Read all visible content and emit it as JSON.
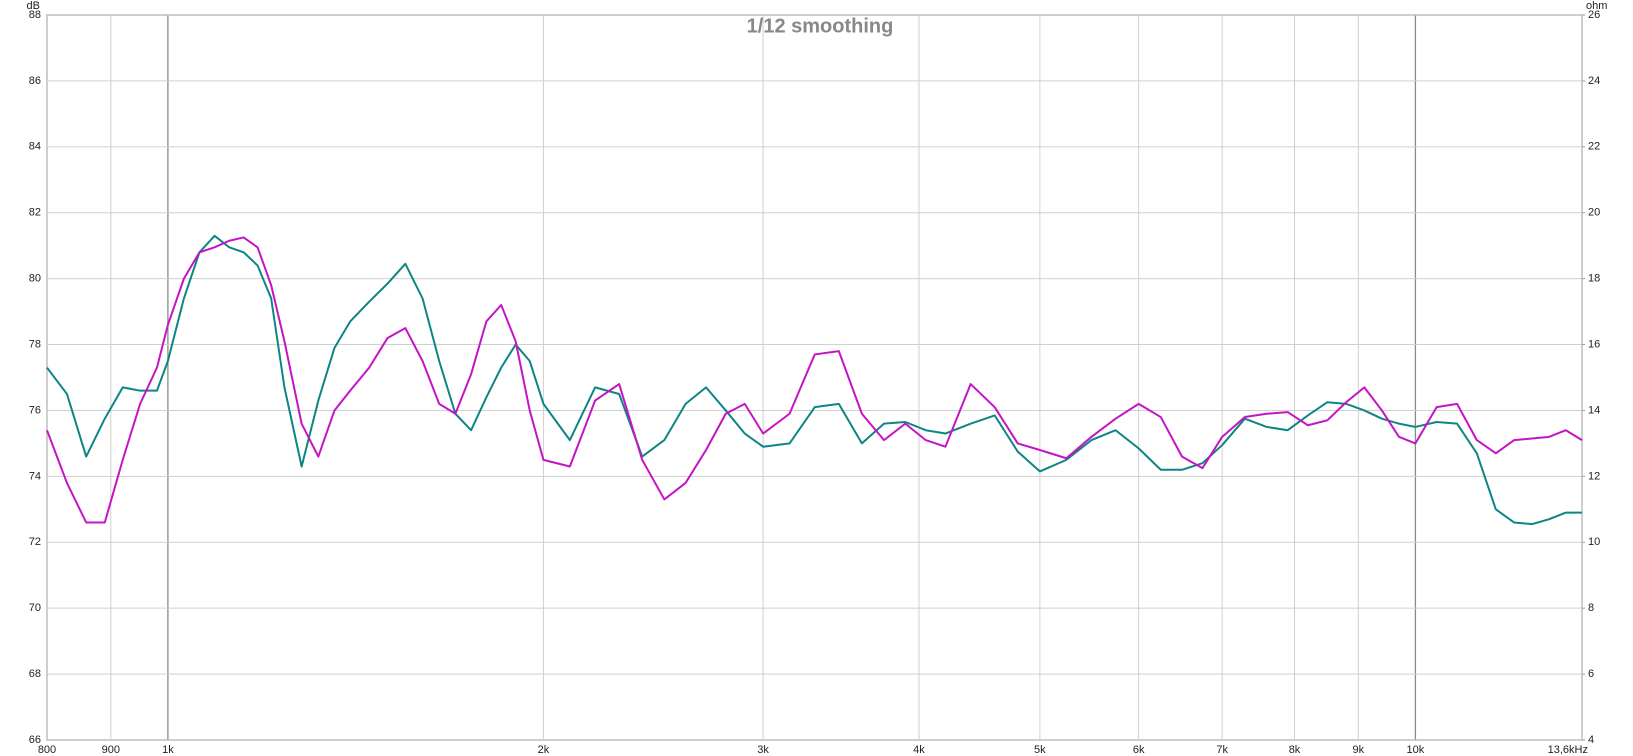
{
  "chart_data": {
    "type": "line",
    "title": "1/12 smoothing",
    "ylabel": "dB",
    "y2label": "ohm",
    "xscale": "log",
    "grid": true,
    "xlim": [
      800,
      13600
    ],
    "xticks": [
      800,
      900,
      {
        "value": 1000,
        "label": "1k"
      },
      {
        "value": 2000,
        "label": "2k"
      },
      {
        "value": 3000,
        "label": "3k"
      },
      {
        "value": 4000,
        "label": "4k"
      },
      {
        "value": 5000,
        "label": "5k"
      },
      {
        "value": 6000,
        "label": "6k"
      },
      {
        "value": 7000,
        "label": "7k"
      },
      {
        "value": 8000,
        "label": "8k"
      },
      {
        "value": 9000,
        "label": "9k"
      },
      {
        "value": 10000,
        "label": "10k"
      },
      {
        "value": 13600,
        "label": "13,6kHz"
      }
    ],
    "ylim": [
      66,
      88
    ],
    "yticks": [
      66,
      68,
      70,
      72,
      74,
      76,
      78,
      80,
      82,
      84,
      86,
      88
    ],
    "y2lim": [
      4,
      26
    ],
    "y2ticks": [
      4,
      6,
      8,
      10,
      12,
      14,
      16,
      18,
      20,
      22,
      24,
      26
    ],
    "x": [
      800,
      830,
      860,
      890,
      920,
      950,
      980,
      1000,
      1030,
      1060,
      1090,
      1120,
      1150,
      1180,
      1210,
      1240,
      1280,
      1320,
      1360,
      1400,
      1450,
      1500,
      1550,
      1600,
      1650,
      1700,
      1750,
      1800,
      1850,
      1900,
      1950,
      2000,
      2100,
      2200,
      2300,
      2400,
      2500,
      2600,
      2700,
      2800,
      2900,
      3000,
      3150,
      3300,
      3450,
      3600,
      3750,
      3900,
      4050,
      4200,
      4400,
      4600,
      4800,
      5000,
      5250,
      5500,
      5750,
      6000,
      6250,
      6500,
      6750,
      7000,
      7300,
      7600,
      7900,
      8200,
      8500,
      8800,
      9100,
      9400,
      9700,
      10000,
      10400,
      10800,
      11200,
      11600,
      12000,
      12400,
      12800,
      13200,
      13600
    ],
    "series": [
      {
        "color": "#0e8585",
        "values": [
          77.3,
          76.5,
          74.6,
          75.75,
          76.7,
          76.6,
          76.6,
          77.5,
          79.4,
          80.8,
          81.3,
          80.95,
          80.8,
          80.4,
          79.4,
          76.7,
          74.3,
          76.3,
          77.9,
          78.7,
          79.3,
          79.85,
          80.45,
          79.4,
          77.5,
          75.9,
          75.4,
          76.4,
          77.3,
          78.0,
          77.5,
          76.2,
          75.1,
          76.7,
          76.5,
          74.6,
          75.1,
          76.2,
          76.7,
          76.0,
          75.3,
          74.9,
          75.0,
          76.1,
          76.2,
          75.0,
          75.6,
          75.65,
          75.4,
          75.3,
          75.6,
          75.85,
          74.75,
          74.15,
          74.5,
          75.1,
          75.4,
          74.85,
          74.2,
          74.2,
          74.4,
          74.95,
          75.75,
          75.5,
          75.4,
          75.85,
          76.25,
          76.2,
          76.0,
          75.75,
          75.6,
          75.5,
          75.65,
          75.6,
          74.7,
          73.0,
          72.6,
          72.55,
          72.7,
          72.9,
          72.9
        ]
      },
      {
        "color": "#c414c4",
        "values": [
          75.4,
          73.8,
          72.6,
          72.6,
          74.5,
          76.2,
          77.3,
          78.6,
          80.0,
          80.8,
          80.95,
          81.15,
          81.25,
          80.95,
          79.8,
          78.1,
          75.6,
          74.6,
          76.0,
          76.6,
          77.3,
          78.2,
          78.5,
          77.5,
          76.2,
          75.9,
          77.1,
          78.7,
          79.2,
          78.1,
          76.0,
          74.5,
          74.3,
          76.3,
          76.8,
          74.5,
          73.3,
          73.8,
          74.8,
          75.9,
          76.2,
          75.3,
          75.9,
          77.7,
          77.8,
          75.9,
          75.1,
          75.6,
          75.1,
          74.9,
          76.8,
          76.1,
          75.0,
          74.8,
          74.55,
          75.2,
          75.75,
          76.2,
          75.8,
          74.6,
          74.25,
          75.2,
          75.8,
          75.9,
          75.95,
          75.55,
          75.7,
          76.25,
          76.7,
          76.0,
          75.2,
          75.0,
          76.1,
          76.2,
          75.1,
          74.7,
          75.1,
          75.15,
          75.2,
          75.4,
          75.1
        ]
      }
    ]
  }
}
